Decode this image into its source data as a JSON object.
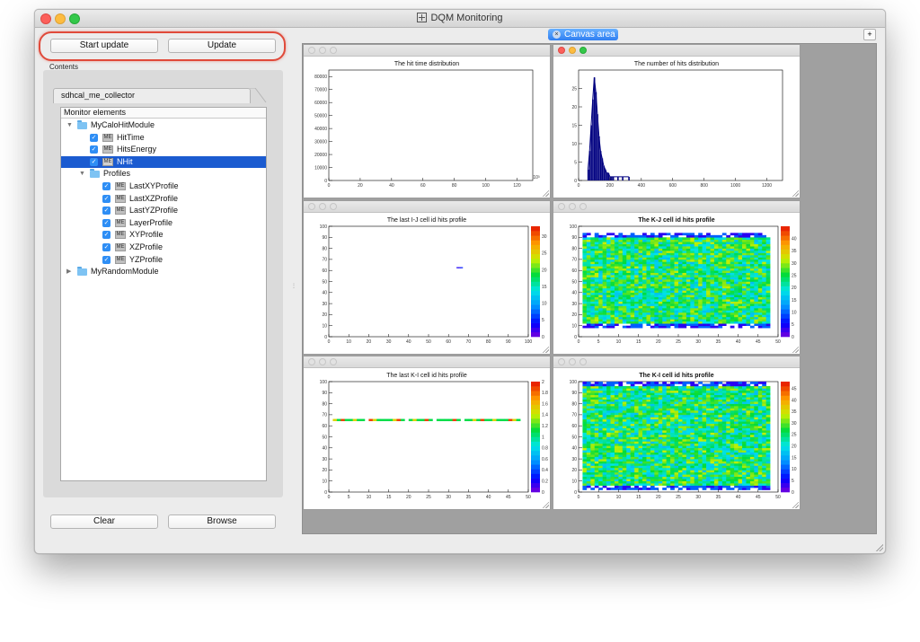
{
  "window": {
    "title": "DQM Monitoring"
  },
  "toolbar": {
    "start_update_label": "Start update",
    "update_label": "Update"
  },
  "contents": {
    "label": "Contents",
    "collector_tab": "sdhcal_me_collector",
    "tree_header": "Monitor elements",
    "me_badge": "ME",
    "check_mark": "✓",
    "items": [
      {
        "label": "MyCaloHitModule",
        "kind": "module",
        "expanded": true
      },
      {
        "label": "HitTime",
        "kind": "element",
        "checked": true
      },
      {
        "label": "HitsEnergy",
        "kind": "element",
        "checked": true
      },
      {
        "label": "NHit",
        "kind": "element",
        "checked": true,
        "selected": true
      },
      {
        "label": "Profiles",
        "kind": "folder",
        "expanded": true
      },
      {
        "label": "LastXYProfile",
        "kind": "element",
        "checked": true
      },
      {
        "label": "LastXZProfile",
        "kind": "element",
        "checked": true
      },
      {
        "label": "LastYZProfile",
        "kind": "element",
        "checked": true
      },
      {
        "label": "LayerProfile",
        "kind": "element",
        "checked": true
      },
      {
        "label": "XYProfile",
        "kind": "element",
        "checked": true
      },
      {
        "label": "XZProfile",
        "kind": "element",
        "checked": true
      },
      {
        "label": "YZProfile",
        "kind": "element",
        "checked": true
      },
      {
        "label": "MyRandomModule",
        "kind": "module",
        "expanded": false
      }
    ]
  },
  "bottom_buttons": {
    "clear_label": "Clear",
    "browse_label": "Browse"
  },
  "canvas": {
    "tab_label": "Canvas area",
    "tab_close": "×",
    "add_button": "+"
  },
  "colors": {
    "accent": "#1b5bd0",
    "tab_blue": "#3a86f5",
    "highlight_red": "#e04a3a",
    "histogram_line": "#000080"
  },
  "chart_data": [
    {
      "type": "bar",
      "title": "The hit time distribution",
      "x_ticks": [
        "0",
        "20",
        "40",
        "60",
        "80",
        "100",
        "120"
      ],
      "x_exponent": "10³",
      "xlim": [
        0,
        130
      ],
      "y_ticks": [
        "0",
        "10000",
        "20000",
        "30000",
        "40000",
        "50000",
        "60000",
        "70000",
        "80000"
      ],
      "ylim": [
        0,
        85000
      ],
      "values": []
    },
    {
      "type": "bar",
      "title": "The number of hits distribution",
      "x_ticks": [
        "0",
        "200",
        "400",
        "600",
        "800",
        "1000",
        "1200"
      ],
      "xlim": [
        0,
        1300
      ],
      "y_ticks": [
        "0",
        "5",
        "10",
        "15",
        "20",
        "25"
      ],
      "ylim": [
        0,
        30
      ],
      "x": [
        60,
        70,
        80,
        90,
        100,
        110,
        120,
        130,
        140,
        150,
        160,
        170,
        180,
        190,
        200,
        210,
        220,
        250,
        280,
        320
      ],
      "values": [
        3,
        8,
        15,
        22,
        28,
        24,
        18,
        12,
        8,
        6,
        4,
        3,
        2,
        2,
        1,
        1,
        1,
        1,
        1,
        1
      ]
    },
    {
      "type": "heatmap",
      "title": "The last I-J cell id hits profile",
      "x_ticks": [
        "0",
        "10",
        "20",
        "30",
        "40",
        "50",
        "60",
        "70",
        "80",
        "90",
        "100"
      ],
      "xlim": [
        0,
        100
      ],
      "y_ticks": [
        "0",
        "10",
        "20",
        "30",
        "40",
        "50",
        "60",
        "70",
        "80",
        "90",
        "100"
      ],
      "ylim": [
        0,
        100
      ],
      "z_ticks": [
        "0",
        "5",
        "10",
        "15",
        "20",
        "25",
        "30"
      ],
      "zlim": [
        0,
        33
      ],
      "cells": [
        [
          64,
          62,
          3
        ],
        [
          65,
          62,
          3
        ],
        [
          66,
          62,
          5
        ]
      ]
    },
    {
      "type": "heatmap",
      "title": "The K-J cell id hits profile",
      "x_ticks": [
        "0",
        "5",
        "10",
        "15",
        "20",
        "25",
        "30",
        "35",
        "40",
        "45",
        "50"
      ],
      "xlim": [
        0,
        50
      ],
      "y_ticks": [
        "0",
        "10",
        "20",
        "30",
        "40",
        "50",
        "60",
        "70",
        "80",
        "90",
        "100"
      ],
      "ylim": [
        0,
        100
      ],
      "z_ticks": [
        "0",
        "5",
        "10",
        "15",
        "20",
        "25",
        "30",
        "35",
        "40"
      ],
      "zlim": [
        0,
        45
      ],
      "fill": {
        "x": [
          1,
          48
        ],
        "y": [
          8,
          94
        ]
      }
    },
    {
      "type": "heatmap",
      "title": "The last K-I cell id hits profile",
      "x_ticks": [
        "0",
        "5",
        "10",
        "15",
        "20",
        "25",
        "30",
        "35",
        "40",
        "45",
        "50"
      ],
      "xlim": [
        0,
        50
      ],
      "y_ticks": [
        "0",
        "10",
        "20",
        "30",
        "40",
        "50",
        "60",
        "70",
        "80",
        "90",
        "100"
      ],
      "ylim": [
        0,
        100
      ],
      "z_ticks": [
        "0",
        "0.2",
        "0.4",
        "0.6",
        "0.8",
        "1",
        "1.2",
        "1.4",
        "1.6",
        "1.8",
        "2"
      ],
      "zlim": [
        0,
        2
      ],
      "row_y": 65,
      "row_x": [
        1,
        48
      ]
    },
    {
      "type": "heatmap",
      "title": "The K-I cell id hits profile",
      "x_ticks": [
        "0",
        "5",
        "10",
        "15",
        "20",
        "25",
        "30",
        "35",
        "40",
        "45",
        "50"
      ],
      "xlim": [
        0,
        50
      ],
      "y_ticks": [
        "0",
        "10",
        "20",
        "30",
        "40",
        "50",
        "60",
        "70",
        "80",
        "90",
        "100"
      ],
      "ylim": [
        0,
        100
      ],
      "z_ticks": [
        "0",
        "5",
        "10",
        "15",
        "20",
        "25",
        "30",
        "35",
        "40",
        "45"
      ],
      "zlim": [
        0,
        48
      ],
      "fill": {
        "x": [
          1,
          48
        ],
        "y": [
          2,
          99
        ]
      }
    }
  ]
}
